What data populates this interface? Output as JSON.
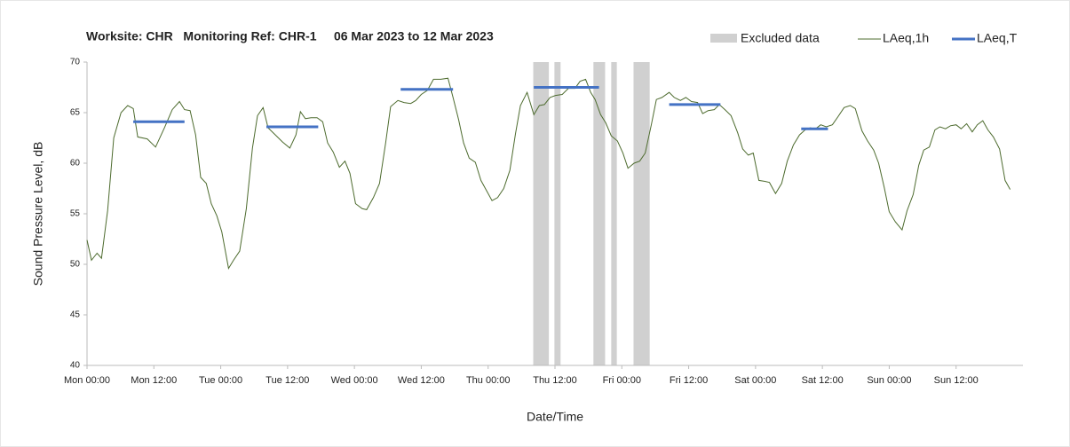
{
  "chart_data": {
    "type": "line",
    "title": "Worksite: CHR   Monitoring Ref: CHR-1     06 Mar 2023 to 12 Mar 2023",
    "xlabel": "Date/Time",
    "ylabel": "Sound Pressure Level, dB",
    "xlim": [
      0,
      168
    ],
    "ylim": [
      40,
      70
    ],
    "yticks": [
      40,
      45,
      50,
      55,
      60,
      65,
      70
    ],
    "xticks": [
      {
        "value": 0,
        "label": "Mon 00:00"
      },
      {
        "value": 12,
        "label": "Mon 12:00"
      },
      {
        "value": 24,
        "label": "Tue 00:00"
      },
      {
        "value": 36,
        "label": "Tue 12:00"
      },
      {
        "value": 48,
        "label": "Wed 00:00"
      },
      {
        "value": 60,
        "label": "Wed 12:00"
      },
      {
        "value": 72,
        "label": "Thu 00:00"
      },
      {
        "value": 84,
        "label": "Thu 12:00"
      },
      {
        "value": 96,
        "label": "Fri 00:00"
      },
      {
        "value": 108,
        "label": "Fri 12:00"
      },
      {
        "value": 120,
        "label": "Sat 00:00"
      },
      {
        "value": 132,
        "label": "Sat 12:00"
      },
      {
        "value": 144,
        "label": "Sun 00:00"
      },
      {
        "value": 156,
        "label": "Sun 12:00"
      }
    ],
    "excluded": {
      "name": "Excluded data",
      "color": "#d0d0d0",
      "ranges": [
        [
          80.1,
          82.9
        ],
        [
          83.9,
          85.0
        ],
        [
          90.9,
          93.0
        ],
        [
          94.1,
          95.1
        ],
        [
          98.1,
          101.0
        ]
      ]
    },
    "series": [
      {
        "name": "LAeq,1h",
        "color": "#4d6b2e",
        "x": [
          0,
          0.8,
          1.8,
          2.6,
          3.7,
          4.8,
          6.1,
          7.3,
          8.3,
          9.1,
          10.8,
          12.3,
          13.9,
          15.3,
          16.6,
          17.5,
          18.5,
          19.5,
          20.4,
          21.4,
          22.3,
          23.3,
          24.2,
          25.4,
          26.3,
          27.4,
          28.6,
          29.7,
          30.6,
          31.6,
          32.5,
          33.8,
          35.1,
          36.4,
          37.5,
          38.3,
          39.2,
          40.2,
          41.3,
          42.3,
          43.2,
          44.2,
          45.3,
          46.3,
          47.2,
          48.2,
          49.4,
          50.2,
          51.4,
          52.5,
          53.6,
          54.5,
          55.8,
          56.9,
          58.1,
          59.0,
          60.0,
          61.1,
          62.2,
          63.5,
          64.8,
          65.7,
          66.7,
          67.6,
          68.6,
          69.7,
          70.7,
          71.6,
          72.7,
          73.7,
          74.8,
          75.9,
          76.9,
          77.8,
          79.0,
          80.2,
          81.2,
          82.1,
          83.1,
          84.1,
          85.3,
          86.4,
          87.6,
          88.5,
          89.5,
          90.4,
          91.2,
          92.2,
          93.1,
          94.1,
          95.2,
          96.2,
          97.1,
          98.2,
          99.2,
          100.2,
          101.3,
          102.2,
          103.2,
          104.5,
          105.4,
          106.5,
          107.5,
          108.5,
          109.6,
          110.5,
          111.5,
          112.6,
          113.5,
          114.5,
          115.6,
          116.8,
          117.7,
          118.7,
          119.6,
          120.6,
          121.7,
          122.5,
          123.6,
          124.7,
          125.7,
          126.8,
          127.9,
          128.9,
          129.8,
          130.8,
          131.7,
          132.7,
          133.8,
          134.8,
          135.9,
          137.0,
          137.9,
          139.1,
          140.1,
          141.2,
          142.1,
          143.1,
          144.0,
          145.1,
          146.3,
          147.2,
          148.3,
          149.3,
          150.2,
          151.2,
          152.2,
          153.1,
          154.1,
          155.0,
          156.0,
          156.9,
          157.9,
          158.9,
          159.8,
          160.8,
          161.7,
          162.7,
          163.8,
          164.8,
          165.7
        ],
        "values": [
          52.4,
          50.4,
          51.1,
          50.6,
          55.3,
          62.5,
          65,
          65.7,
          65.4,
          62.6,
          62.4,
          61.6,
          63.5,
          65.3,
          66.1,
          65.3,
          65.2,
          62.8,
          58.6,
          58,
          56,
          54.8,
          53.2,
          49.6,
          50.4,
          51.3,
          55.5,
          61.5,
          64.7,
          65.5,
          63.5,
          62.8,
          62.1,
          61.5,
          62.8,
          65.1,
          64.4,
          64.5,
          64.5,
          64.1,
          62,
          61.1,
          59.6,
          60.2,
          59,
          56,
          55.5,
          55.4,
          56.6,
          58,
          62,
          65.6,
          66.2,
          66,
          65.9,
          66.2,
          66.8,
          67.2,
          68.3,
          68.3,
          68.4,
          66.5,
          64.3,
          62,
          60.5,
          60.1,
          58.3,
          57.4,
          56.3,
          56.6,
          57.5,
          59.3,
          62.9,
          65.7,
          67,
          64.8,
          65.7,
          65.8,
          66.5,
          66.7,
          66.8,
          67.4,
          67.4,
          68.1,
          68.3,
          67,
          66.3,
          64.8,
          64,
          62.7,
          62.2,
          61,
          59.5,
          60,
          60.2,
          61,
          63.8,
          66.3,
          66.5,
          67,
          66.5,
          66.2,
          66.5,
          66.1,
          66,
          64.9,
          65.2,
          65.3,
          65.8,
          65.3,
          64.7,
          63,
          61.4,
          60.8,
          61,
          58.3,
          58.2,
          58.1,
          57,
          58,
          60.2,
          61.8,
          62.8,
          63.3,
          63.5,
          63.4,
          63.8,
          63.6,
          63.8,
          64.6,
          65.5,
          65.7,
          65.4,
          63.2,
          62.2,
          61.3,
          60,
          57.6,
          55.2,
          54.2,
          53.4,
          55.3,
          56.9,
          59.8,
          61.3,
          61.6,
          63.3,
          63.6,
          63.4,
          63.7,
          63.8,
          63.4,
          63.9,
          63.1,
          63.8,
          64.2,
          63.3,
          62.6,
          61.4,
          58.3,
          57.4
        ]
      },
      {
        "name": "LAeq,T",
        "color": "#4472c4",
        "segments": [
          {
            "x": [
              8.3,
              17.5
            ],
            "value": 64.1
          },
          {
            "x": [
              32.2,
              41.5
            ],
            "value": 63.6
          },
          {
            "x": [
              56.3,
              65.7
            ],
            "value": 67.3
          },
          {
            "x": [
              80.2,
              91.9
            ],
            "value": 67.5
          },
          {
            "x": [
              104.5,
              113.7
            ],
            "value": 65.8
          },
          {
            "x": [
              128.2,
              133.0
            ],
            "value": 63.4
          }
        ]
      }
    ]
  }
}
